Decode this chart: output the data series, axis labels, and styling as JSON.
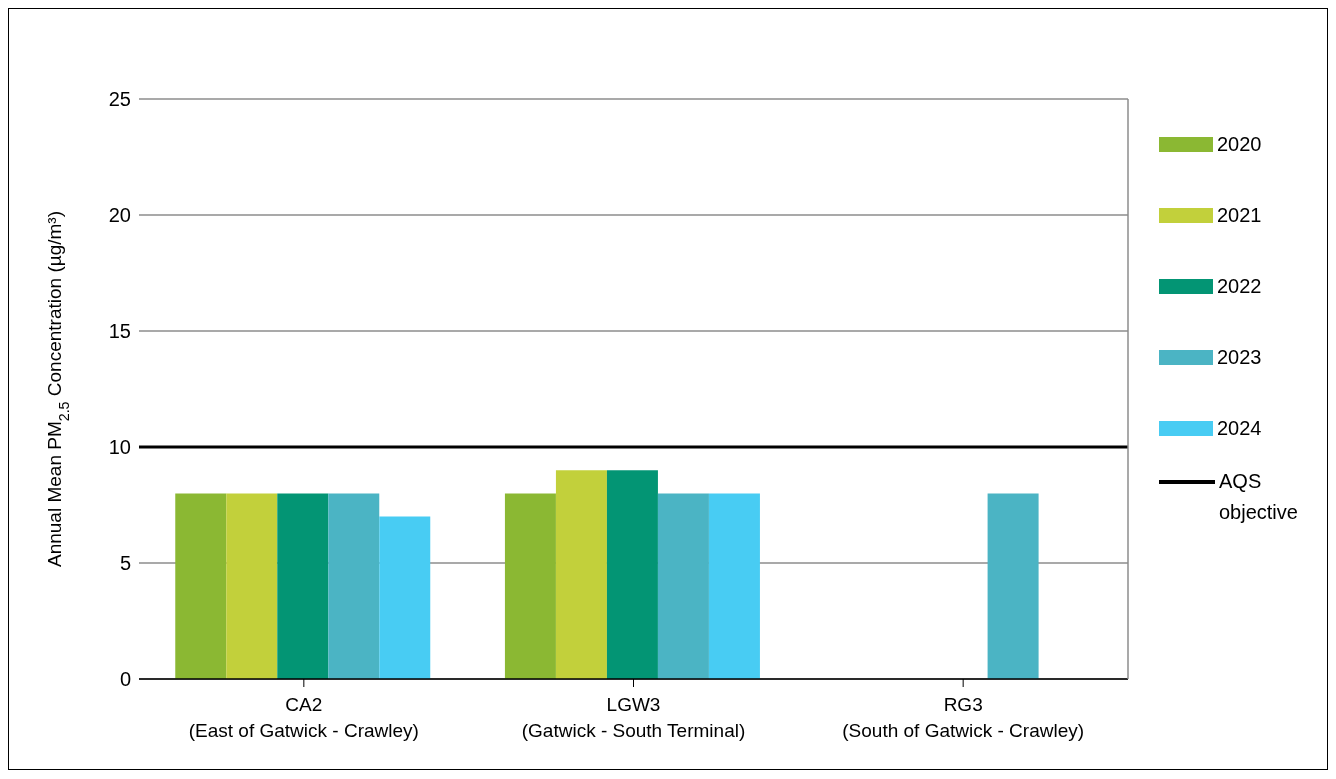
{
  "chart_data": {
    "type": "bar",
    "ylabel": "Annual Mean PM$_{2.5}$ Concentration (µg/m³)",
    "categories": [
      "CA2\n(East of Gatwick - Crawley)",
      "LGW3\n(Gatwick - South Terminal)",
      "RG3\n(South of Gatwick - Crawley)"
    ],
    "series": [
      {
        "name": "2020",
        "color": "#8bb833",
        "values": [
          8,
          8,
          null
        ]
      },
      {
        "name": "2021",
        "color": "#c2d03b",
        "values": [
          8,
          9,
          null
        ]
      },
      {
        "name": "2022",
        "color": "#039574",
        "values": [
          8,
          9,
          null
        ]
      },
      {
        "name": "2023",
        "color": "#4bb4c4",
        "values": [
          8,
          8,
          8
        ]
      },
      {
        "name": "2024",
        "color": "#48ccf3",
        "values": [
          7,
          8,
          null
        ]
      }
    ],
    "ylim": [
      0,
      25
    ],
    "yticks": [
      0,
      5,
      10,
      15,
      20,
      25
    ],
    "grid": "y",
    "legend": "right",
    "ref_lines": [
      {
        "axis": "y",
        "value": 10,
        "label": "AQS objective",
        "color": "#000000"
      }
    ]
  }
}
